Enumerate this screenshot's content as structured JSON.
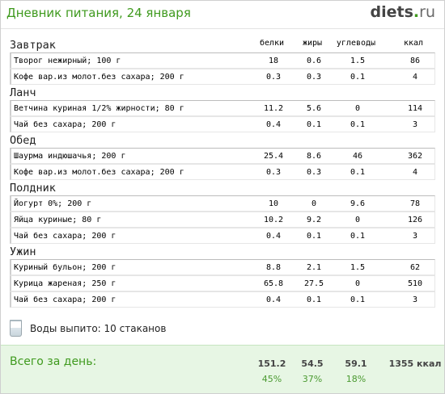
{
  "header": {
    "title": "Дневник питания, 24 января",
    "logo": {
      "bold": "diets",
      "dot": ".",
      "tld": "ru"
    }
  },
  "columns": [
    "белки",
    "жиры",
    "углеводы",
    "ккал"
  ],
  "meals": [
    {
      "name": "Завтрак",
      "items": [
        {
          "name": "Творог нежирный; 100 г",
          "protein": "18",
          "fat": "0.6",
          "carbs": "1.5",
          "kcal": "86"
        },
        {
          "name": "Кофе вар.из молот.без сахара; 200 г",
          "protein": "0.3",
          "fat": "0.3",
          "carbs": "0.1",
          "kcal": "4"
        }
      ]
    },
    {
      "name": "Ланч",
      "items": [
        {
          "name": "Ветчина куриная 1/2% жирности; 80 г",
          "protein": "11.2",
          "fat": "5.6",
          "carbs": "0",
          "kcal": "114"
        },
        {
          "name": "Чай без сахара; 200 г",
          "protein": "0.4",
          "fat": "0.1",
          "carbs": "0.1",
          "kcal": "3"
        }
      ]
    },
    {
      "name": "Обед",
      "items": [
        {
          "name": "Шаурма индюшачья; 200 г",
          "protein": "25.4",
          "fat": "8.6",
          "carbs": "46",
          "kcal": "362"
        },
        {
          "name": "Кофе вар.из молот.без сахара; 200 г",
          "protein": "0.3",
          "fat": "0.3",
          "carbs": "0.1",
          "kcal": "4"
        }
      ]
    },
    {
      "name": "Полдник",
      "items": [
        {
          "name": "Йогурт 0%; 200 г",
          "protein": "10",
          "fat": "0",
          "carbs": "9.6",
          "kcal": "78"
        },
        {
          "name": "Яйца куриные; 80 г",
          "protein": "10.2",
          "fat": "9.2",
          "carbs": "0",
          "kcal": "126"
        },
        {
          "name": "Чай без сахара; 200 г",
          "protein": "0.4",
          "fat": "0.1",
          "carbs": "0.1",
          "kcal": "3"
        }
      ]
    },
    {
      "name": "Ужин",
      "items": [
        {
          "name": "Куриный бульон; 200 г",
          "protein": "8.8",
          "fat": "2.1",
          "carbs": "1.5",
          "kcal": "62"
        },
        {
          "name": "Курица жареная; 250 г",
          "protein": "65.8",
          "fat": "27.5",
          "carbs": "0",
          "kcal": "510"
        },
        {
          "name": "Чай без сахара; 200 г",
          "protein": "0.4",
          "fat": "0.1",
          "carbs": "0.1",
          "kcal": "3"
        }
      ]
    }
  ],
  "water": {
    "label": "Воды выпито: 10 стаканов",
    "icon": "glass-icon"
  },
  "totals": {
    "label": "Всего за день:",
    "protein": "151.2",
    "fat": "54.5",
    "carbs": "59.1",
    "kcal": "1355 ккал",
    "protein_pct": "45%",
    "fat_pct": "37%",
    "carbs_pct": "18%"
  },
  "colors": {
    "accent": "#3f9a1e",
    "footer_bg": "#e7f6e4"
  }
}
